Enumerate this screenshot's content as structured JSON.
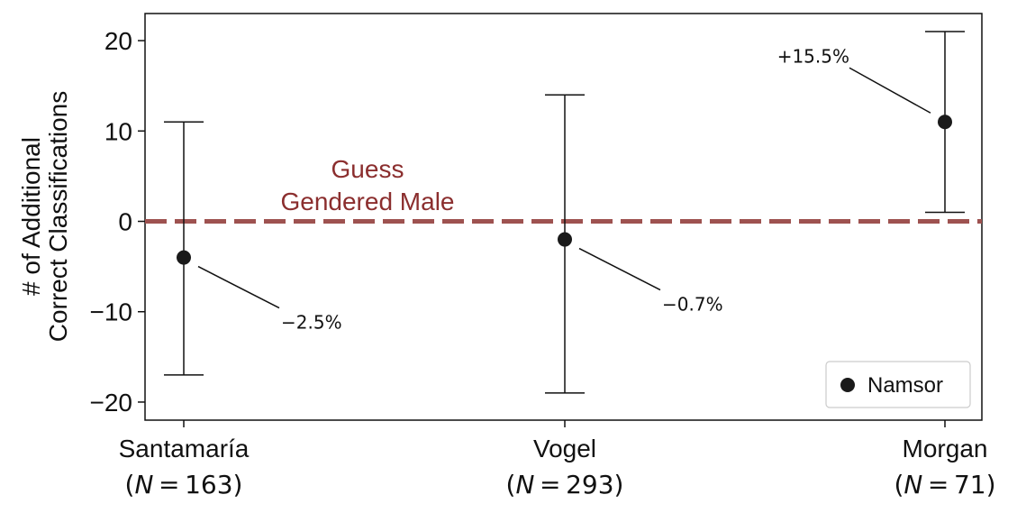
{
  "chart_data": {
    "type": "scatter",
    "categories": [
      "Santamaría",
      "Vogel",
      "Morgan"
    ],
    "sample_sizes": [
      "163",
      "293",
      "71"
    ],
    "series": [
      {
        "name": "Namsor",
        "color": "#1a1a1a",
        "values": [
          -4,
          -2,
          11
        ],
        "error_low": [
          -17,
          -19,
          1
        ],
        "error_high": [
          11,
          14,
          21
        ],
        "annotations": [
          "−2.5%",
          "−0.7%",
          "+15.5%"
        ]
      }
    ],
    "reference_line": {
      "y": 0,
      "label_line1": "Guess",
      "label_line2": "Gendered Male",
      "color": "#9e5250",
      "label_color": "#8b2e2e"
    },
    "ylabel_line1": "# of Additional",
    "ylabel_line2": "Correct Classifications",
    "ylim": [
      -22,
      23
    ],
    "yticks": [
      -20,
      -10,
      0,
      10,
      20
    ],
    "ytick_labels": [
      "−20",
      "−10",
      "0",
      "10",
      "20"
    ],
    "legend_position": "lower-right",
    "grid": false
  }
}
